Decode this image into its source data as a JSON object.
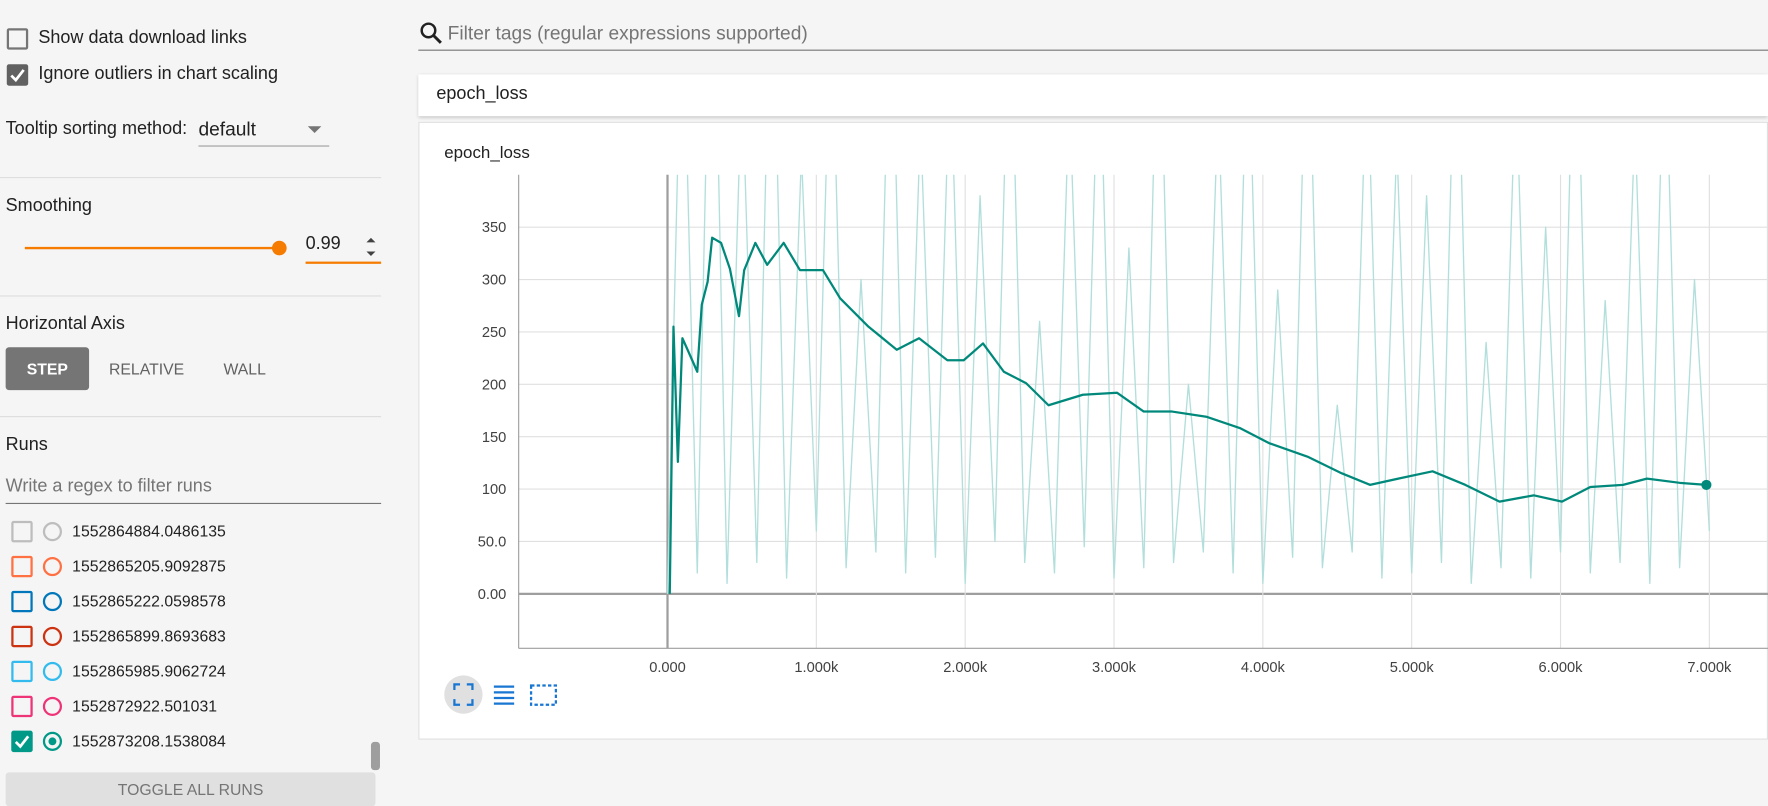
{
  "sidebar": {
    "options": [
      {
        "label": "Show data download links",
        "checked": false
      },
      {
        "label": "Ignore outliers in chart scaling",
        "checked": true
      }
    ],
    "tooltip_label": "Tooltip sorting method:",
    "tooltip_value": "default",
    "smoothing_label": "Smoothing",
    "smoothing_value": 0.99,
    "horizontal_axis_label": "Horizontal Axis",
    "axis_buttons": [
      "STEP",
      "RELATIVE",
      "WALL"
    ],
    "runs_label": "Runs",
    "runs_filter_placeholder": "Write a regex to filter runs",
    "runs": [
      {
        "name": "1552864884.0486135",
        "color": "#bdbdbd",
        "checked": false
      },
      {
        "name": "1552865205.9092875",
        "color": "#ff7043",
        "checked": false
      },
      {
        "name": "1552865222.0598578",
        "color": "#0077bb",
        "checked": false
      },
      {
        "name": "1552865899.8693683",
        "color": "#cc3311",
        "checked": false
      },
      {
        "name": "1552865985.9062724",
        "color": "#33bbee",
        "checked": false
      },
      {
        "name": "1552872922.501031",
        "color": "#ee3377",
        "checked": false
      },
      {
        "name": "1552873208.1538084",
        "color": "#009988",
        "checked": true
      }
    ],
    "toggle_all": "TOGGLE ALL RUNS"
  },
  "search_placeholder": "Filter tags (regular expressions supported)",
  "card_title": "epoch_loss",
  "chart_data": {
    "type": "line",
    "title": "epoch_loss",
    "xlim": [
      -1000,
      7394
    ],
    "ylim": [
      -52,
      400
    ],
    "xticks": [
      {
        "value": 0,
        "label": "0.000"
      },
      {
        "value": 1000,
        "label": "1.000k"
      },
      {
        "value": 2000,
        "label": "2.000k"
      },
      {
        "value": 3000,
        "label": "3.000k"
      },
      {
        "value": 4000,
        "label": "4.000k"
      },
      {
        "value": 5000,
        "label": "5.000k"
      },
      {
        "value": 6000,
        "label": "6.000k"
      },
      {
        "value": 7000,
        "label": "7.000k"
      }
    ],
    "yticks": [
      {
        "value": 0,
        "label": "0.00"
      },
      {
        "value": 50,
        "label": "50.0"
      },
      100,
      150,
      200,
      250,
      300,
      350
    ],
    "grid": true,
    "series": [
      {
        "color": "#b2dfdb",
        "x": [
          0,
          100,
          200,
          300,
          400,
          500,
          600,
          700,
          800,
          900,
          1000,
          1100,
          1200,
          1300,
          1400,
          1500,
          1600,
          1700,
          1800,
          1900,
          2000,
          2100,
          2200,
          2300,
          2400,
          2500,
          2600,
          2700,
          2800,
          2900,
          3000,
          3100,
          3200,
          3300,
          3400,
          3500,
          3600,
          3700,
          3800,
          3900,
          4000,
          4100,
          4200,
          4300,
          4400,
          4500,
          4600,
          4700,
          4800,
          4900,
          5000,
          5100,
          5200,
          5300,
          5400,
          5500,
          5600,
          5700,
          5800,
          5900,
          6000,
          6100,
          6200,
          6300,
          6400,
          6500,
          6600,
          6700,
          6800,
          6900,
          7000
        ],
        "values": [
          0,
          600,
          20,
          700,
          10,
          500,
          30,
          650,
          15,
          420,
          60,
          580,
          25,
          300,
          40,
          610,
          20,
          450,
          35,
          520,
          10,
          380,
          50,
          600,
          30,
          260,
          20,
          480,
          45,
          550,
          15,
          330,
          25,
          610,
          30,
          200,
          40,
          470,
          20,
          560,
          10,
          290,
          35,
          600,
          25,
          180,
          40,
          520,
          15,
          430,
          20,
          380,
          30,
          610,
          10,
          240,
          25,
          500,
          15,
          350,
          40,
          620,
          20,
          280,
          30,
          450,
          10,
          560,
          25,
          300,
          60
        ]
      },
      {
        "color": "#00897b",
        "x": [
          15,
          40,
          70,
          100,
          135,
          200,
          230,
          270,
          300,
          360,
          420,
          480,
          515,
          590,
          670,
          780,
          890,
          1045,
          1160,
          1350,
          1540,
          1690,
          1880,
          1990,
          2120,
          2260,
          2410,
          2560,
          2790,
          3020,
          3200,
          3390,
          3620,
          3850,
          4040,
          4300,
          4530,
          4720,
          4910,
          5140,
          5360,
          5590,
          5820,
          6010,
          6200,
          6420,
          6580,
          6800,
          6980
        ],
        "values": [
          0,
          255,
          126,
          244,
          233,
          212,
          276,
          298,
          340,
          335,
          310,
          265,
          309,
          335,
          314,
          335,
          309,
          309,
          282,
          255,
          233,
          244,
          223,
          223,
          239,
          212,
          201,
          180,
          190,
          192,
          174,
          174,
          169,
          158,
          144,
          131,
          115,
          104,
          110,
          117,
          104,
          88,
          94,
          88,
          102,
          104,
          110,
          106,
          104
        ]
      }
    ]
  }
}
